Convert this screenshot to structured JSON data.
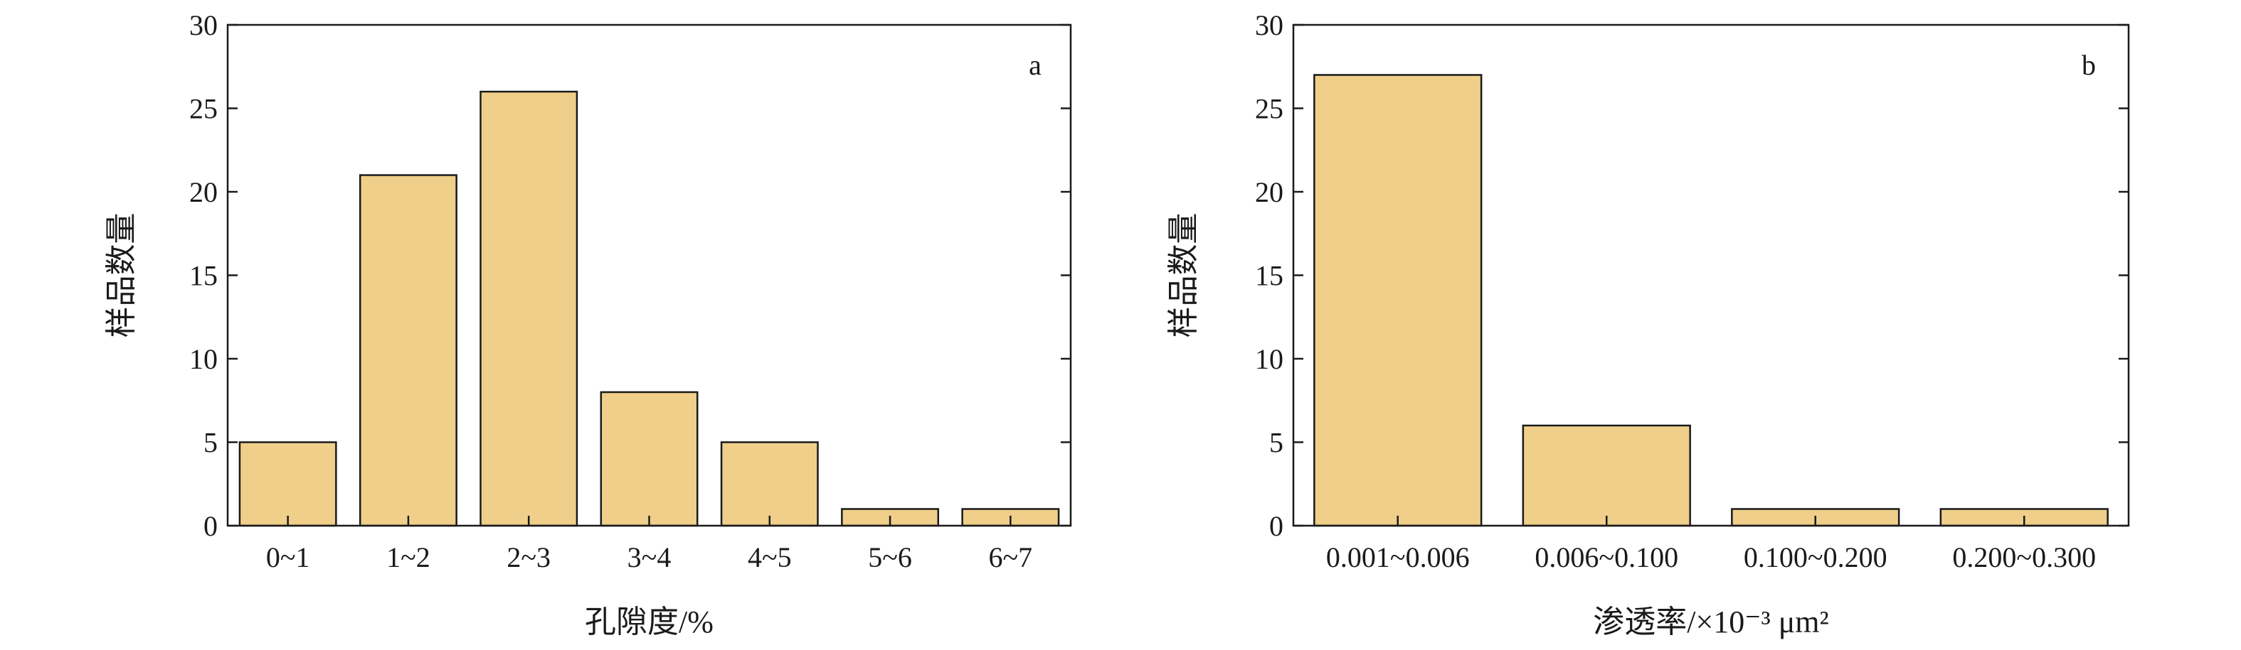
{
  "chart_data": [
    {
      "type": "bar",
      "panel_label": "a",
      "categories": [
        "0~1",
        "1~2",
        "2~3",
        "3~4",
        "4~5",
        "5~6",
        "6~7"
      ],
      "values": [
        5,
        21,
        26,
        8,
        5,
        1,
        1
      ],
      "xlabel": "孔隙度/%",
      "ylabel": "样品数量",
      "ylim": [
        0,
        30
      ],
      "yticks": [
        "0",
        "5",
        "10",
        "15",
        "20",
        "25",
        "30"
      ],
      "bar_color": "#efcf8a",
      "grid": false,
      "legend": "none"
    },
    {
      "type": "bar",
      "panel_label": "b",
      "categories": [
        "0.001~0.006",
        "0.006~0.100",
        "0.100~0.200",
        "0.200~0.300"
      ],
      "values": [
        27,
        6,
        1,
        1
      ],
      "xlabel": "渗透率/×10⁻³ μm²",
      "ylabel": "样品数量",
      "ylim": [
        0,
        30
      ],
      "yticks": [
        "0",
        "5",
        "10",
        "15",
        "20",
        "25",
        "30"
      ],
      "bar_color": "#efcf8a",
      "grid": false,
      "legend": "none"
    }
  ]
}
